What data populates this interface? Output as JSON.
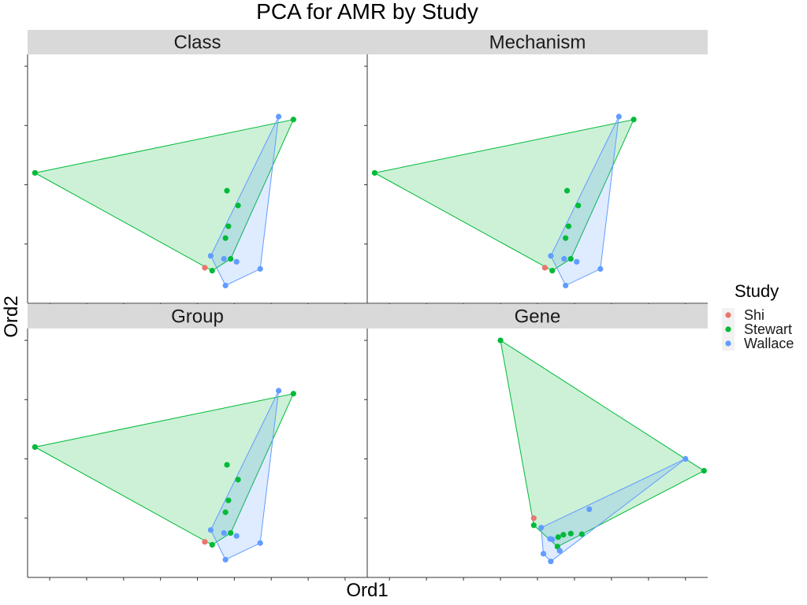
{
  "chart_data": {
    "type": "scatter",
    "title": "PCA for AMR by Study",
    "xlabel": "Ord1",
    "ylabel": "Ord2",
    "legend": {
      "title": "Study",
      "position": "right"
    },
    "series_colors": {
      "Shi": "#e8766d",
      "Stewart": "#00ba38",
      "Wallace": "#619cff"
    },
    "hulls": true,
    "panels": [
      {
        "name": "Class",
        "xlim": [
          -1.8,
          2.8
        ],
        "ylim": [
          -2.5,
          1.7
        ],
        "x_ticks": [
          -1.5,
          -1.0,
          -0.5,
          0.0,
          0.5,
          1.0,
          1.5,
          2.0,
          2.5
        ],
        "y_ticks": [
          1.5,
          0.5,
          -0.5,
          -1.5
        ],
        "series": [
          {
            "name": "Shi",
            "points": [
              [
                0.6,
                -1.9
              ]
            ]
          },
          {
            "name": "Stewart",
            "points": [
              [
                -1.7,
                -0.3
              ],
              [
                1.8,
                0.6
              ],
              [
                0.7,
                -1.95
              ],
              [
                0.9,
                -0.6
              ],
              [
                1.05,
                -0.85
              ],
              [
                0.92,
                -1.2
              ],
              [
                0.88,
                -1.4
              ],
              [
                0.95,
                -1.75
              ]
            ]
          },
          {
            "name": "Wallace",
            "points": [
              [
                1.6,
                0.65
              ],
              [
                0.68,
                -1.7
              ],
              [
                0.86,
                -1.75
              ],
              [
                1.03,
                -1.8
              ],
              [
                1.35,
                -1.92
              ],
              [
                0.88,
                -2.2
              ]
            ]
          }
        ]
      },
      {
        "name": "Mechanism",
        "xlim": [
          -1.8,
          2.8
        ],
        "ylim": [
          -2.5,
          1.7
        ],
        "x_ticks": [
          -1.5,
          -1.0,
          -0.5,
          0.0,
          0.5,
          1.0,
          1.5,
          2.0,
          2.5
        ],
        "y_ticks": [
          1.5,
          0.5,
          -0.5,
          -1.5
        ],
        "series": [
          {
            "name": "Shi",
            "points": [
              [
                0.6,
                -1.9
              ]
            ]
          },
          {
            "name": "Stewart",
            "points": [
              [
                -1.7,
                -0.3
              ],
              [
                1.8,
                0.6
              ],
              [
                0.7,
                -1.95
              ],
              [
                0.9,
                -0.6
              ],
              [
                1.05,
                -0.85
              ],
              [
                0.92,
                -1.2
              ],
              [
                0.88,
                -1.4
              ],
              [
                0.95,
                -1.75
              ]
            ]
          },
          {
            "name": "Wallace",
            "points": [
              [
                1.6,
                0.65
              ],
              [
                0.68,
                -1.7
              ],
              [
                0.86,
                -1.75
              ],
              [
                1.03,
                -1.8
              ],
              [
                1.35,
                -1.92
              ],
              [
                0.88,
                -2.2
              ]
            ]
          }
        ]
      },
      {
        "name": "Group",
        "xlim": [
          -1.8,
          2.8
        ],
        "ylim": [
          -2.5,
          1.7
        ],
        "x_ticks": [
          -1.5,
          -1.0,
          -0.5,
          0.0,
          0.5,
          1.0,
          1.5,
          2.0,
          2.5
        ],
        "y_ticks": [
          1.5,
          0.5,
          -0.5,
          -1.5
        ],
        "series": [
          {
            "name": "Shi",
            "points": [
              [
                0.6,
                -1.9
              ]
            ]
          },
          {
            "name": "Stewart",
            "points": [
              [
                -1.7,
                -0.3
              ],
              [
                1.8,
                0.6
              ],
              [
                0.7,
                -1.95
              ],
              [
                0.9,
                -0.6
              ],
              [
                1.05,
                -0.85
              ],
              [
                0.92,
                -1.2
              ],
              [
                0.88,
                -1.4
              ],
              [
                0.95,
                -1.75
              ]
            ]
          },
          {
            "name": "Wallace",
            "points": [
              [
                1.6,
                0.65
              ],
              [
                0.68,
                -1.7
              ],
              [
                0.86,
                -1.75
              ],
              [
                1.03,
                -1.8
              ],
              [
                1.35,
                -1.92
              ],
              [
                0.88,
                -2.2
              ]
            ]
          }
        ]
      },
      {
        "name": "Gene",
        "xlim": [
          -1.8,
          2.8
        ],
        "ylim": [
          -2.5,
          1.7
        ],
        "x_ticks": [
          -1.5,
          -1.0,
          -0.5,
          0.0,
          0.5,
          1.0,
          1.5,
          2.0,
          2.5
        ],
        "y_ticks": [
          1.5,
          0.5,
          -0.5,
          -1.5
        ],
        "series": [
          {
            "name": "Shi",
            "points": [
              [
                0.45,
                -1.5
              ]
            ]
          },
          {
            "name": "Stewart",
            "points": [
              [
                0.0,
                1.5
              ],
              [
                2.75,
                -0.7
              ],
              [
                0.45,
                -1.62
              ],
              [
                0.78,
                -1.82
              ],
              [
                0.85,
                -1.78
              ],
              [
                0.95,
                -1.76
              ],
              [
                1.1,
                -1.77
              ],
              [
                0.77,
                -1.98
              ]
            ]
          },
          {
            "name": "Wallace",
            "points": [
              [
                2.5,
                -0.5
              ],
              [
                0.55,
                -1.66
              ],
              [
                0.67,
                -1.85
              ],
              [
                0.7,
                -1.86
              ],
              [
                0.8,
                -2.05
              ],
              [
                1.2,
                -1.35
              ],
              [
                0.58,
                -2.1
              ],
              [
                0.68,
                -2.23
              ]
            ]
          }
        ]
      }
    ]
  }
}
